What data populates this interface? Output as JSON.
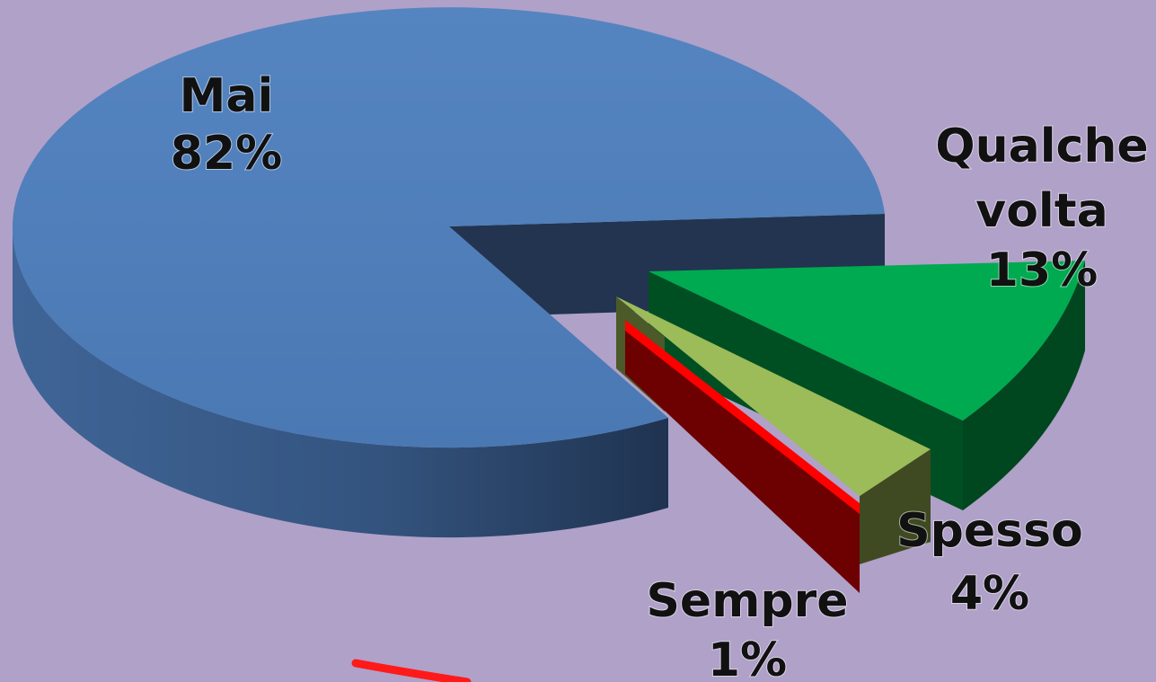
{
  "chart_data": {
    "type": "pie",
    "variant": "3d-exploded",
    "background": "#b0a1c8",
    "slices": [
      {
        "label": "Mai",
        "value": 82,
        "value_label": "82%",
        "color": "#4f7fbb",
        "side_color": "#2e4a72"
      },
      {
        "label": "Qualche volta",
        "value": 13,
        "value_label": "13%",
        "color": "#00a84f",
        "side_color": "#004e22"
      },
      {
        "label": "Spesso",
        "value": 4,
        "value_label": "4%",
        "color": "#9bbb59",
        "side_color": "#3e4a22"
      },
      {
        "label": "Sempre",
        "value": 1,
        "value_label": "1%",
        "color": "#ff0000",
        "side_color": "#6f0000"
      }
    ]
  }
}
